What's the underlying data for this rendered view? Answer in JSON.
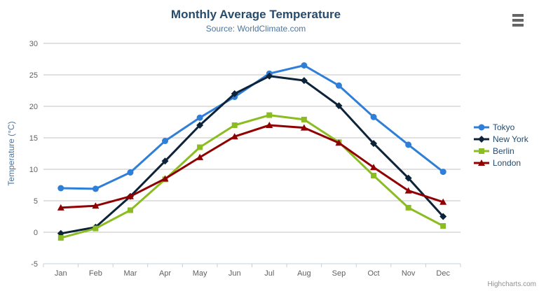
{
  "chart_data": {
    "type": "line",
    "title": "Monthly Average Temperature",
    "subtitle": "Source: WorldClimate.com",
    "categories": [
      "Jan",
      "Feb",
      "Mar",
      "Apr",
      "May",
      "Jun",
      "Jul",
      "Aug",
      "Sep",
      "Oct",
      "Nov",
      "Dec"
    ],
    "yaxis": {
      "title": "Temperature (°C)",
      "min": -5,
      "max": 30,
      "tick_interval": 5,
      "tick_labels": [
        "-5",
        "0",
        "5",
        "10",
        "15",
        "20",
        "25",
        "30"
      ]
    },
    "grid": true,
    "legend_position": "right",
    "series": [
      {
        "name": "Tokyo",
        "color": "#2f7ed8",
        "marker": "circle",
        "values": [
          7.0,
          6.9,
          9.5,
          14.5,
          18.2,
          21.5,
          25.2,
          26.5,
          23.3,
          18.3,
          13.9,
          9.6
        ]
      },
      {
        "name": "New York",
        "color": "#0d233a",
        "marker": "diamond",
        "values": [
          -0.2,
          0.8,
          5.7,
          11.3,
          17.0,
          22.0,
          24.8,
          24.1,
          20.1,
          14.1,
          8.6,
          2.5
        ]
      },
      {
        "name": "Berlin",
        "color": "#8bbc21",
        "marker": "square",
        "values": [
          -0.9,
          0.6,
          3.5,
          8.4,
          13.5,
          17.0,
          18.6,
          17.9,
          14.3,
          9.0,
          3.9,
          1.0
        ]
      },
      {
        "name": "London",
        "color": "#910000",
        "marker": "triangle",
        "values": [
          3.9,
          4.2,
          5.7,
          8.5,
          11.9,
          15.2,
          17.0,
          16.6,
          14.2,
          10.3,
          6.6,
          4.8
        ]
      }
    ]
  },
  "credits": {
    "text": "Highcharts.com"
  },
  "colors": {
    "title_text": "#274b6d",
    "subtitle_text": "#4d759e",
    "axis_label_text": "#606060",
    "gridline": "#c0c0c0",
    "axis_line": "#c0d0e0",
    "export_icon": "#666666"
  }
}
